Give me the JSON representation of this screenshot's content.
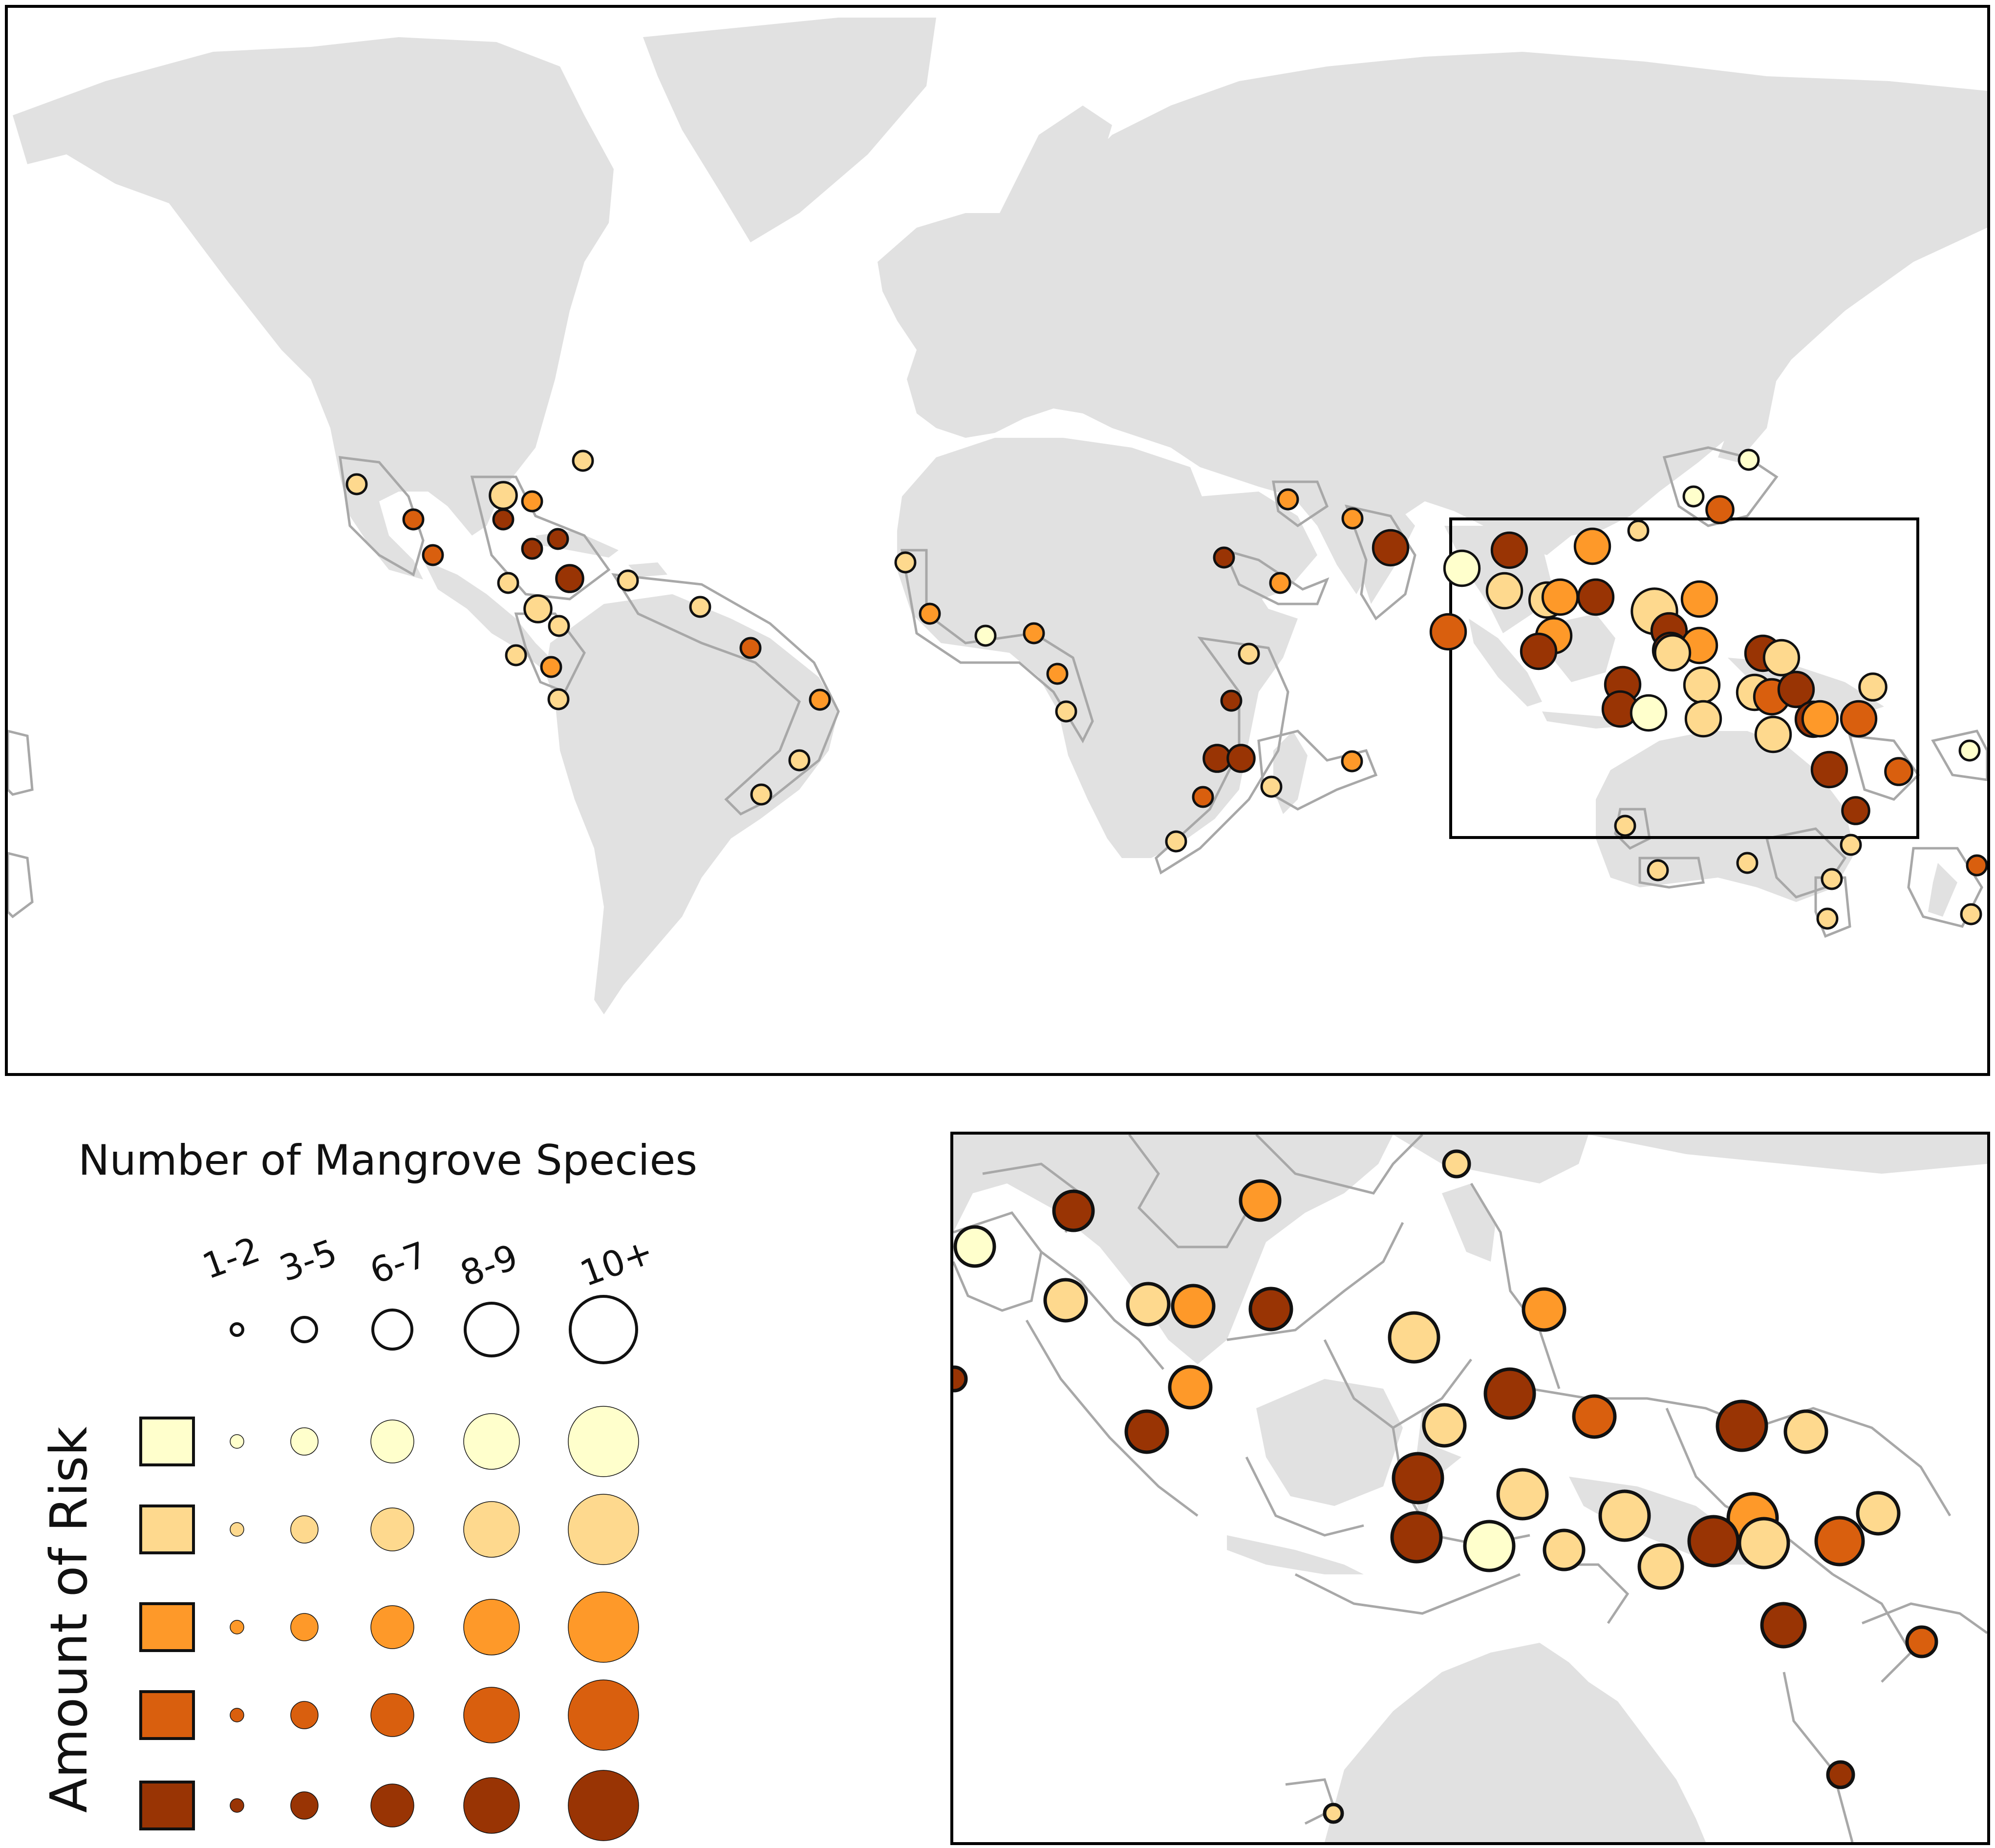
{
  "legend": {
    "title": "Number of Mangrove Species",
    "y_label": "Amount of Risk",
    "size_classes": [
      "1-2",
      "3-5",
      "6-7",
      "8-9",
      "10+"
    ],
    "risk_colors": [
      "#ffffcc",
      "#fed98e",
      "#fe9929",
      "#d95f0e",
      "#993404"
    ]
  },
  "map": {
    "inset_region": "Southeast Asia / Indo-Pacific",
    "land_color": "#e1e1e1",
    "ecoregion_outline_color": "#a8a8a8"
  }
}
